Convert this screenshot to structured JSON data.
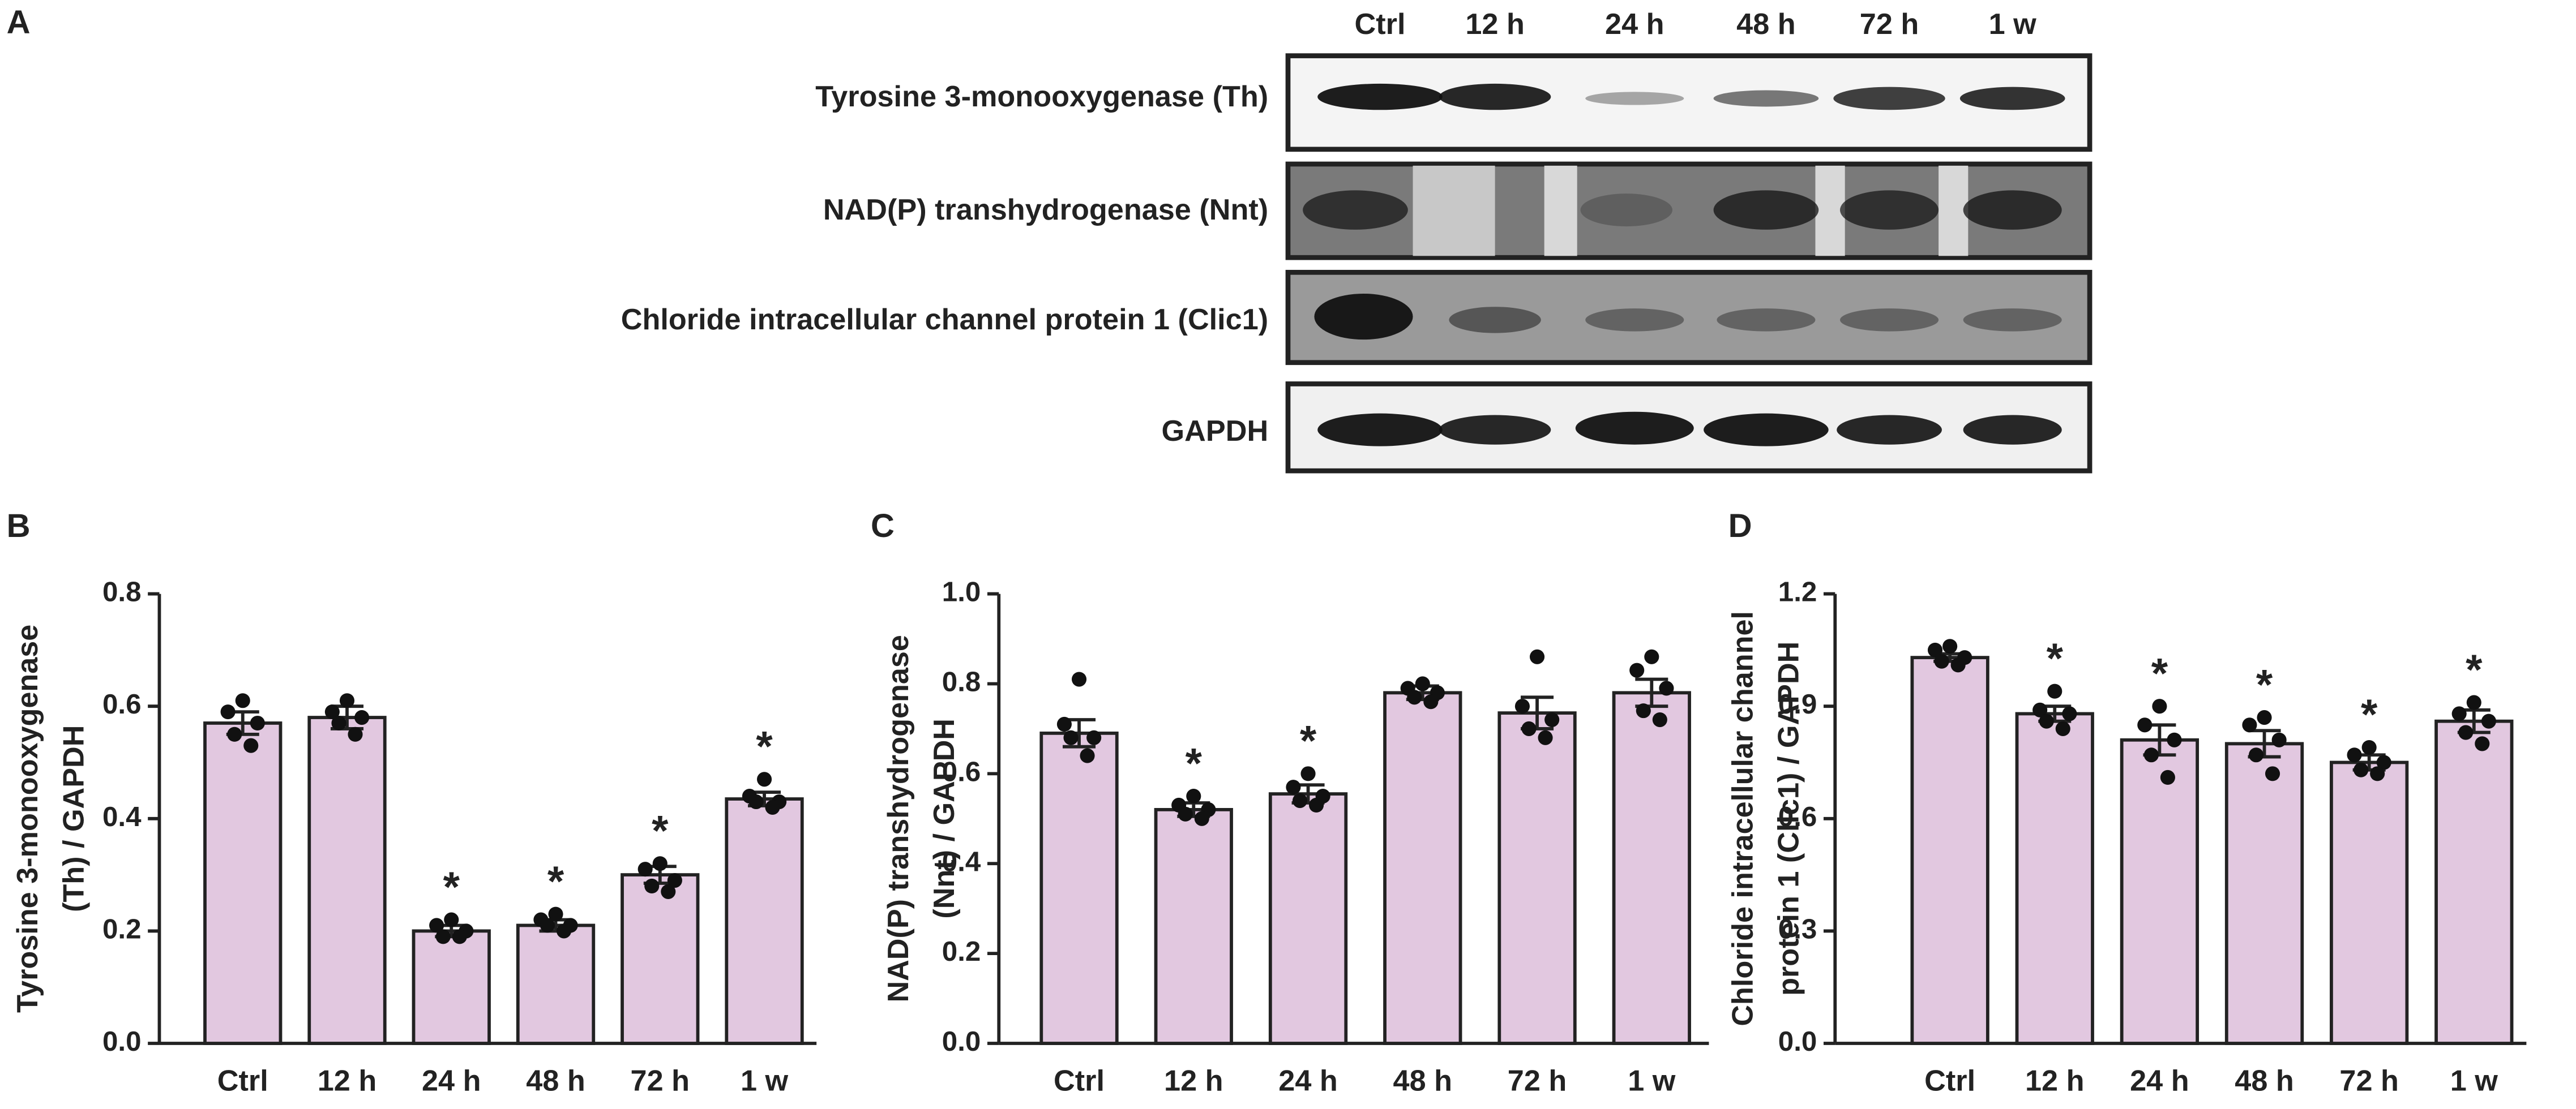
{
  "panel_labels": [
    "A",
    "B",
    "C",
    "D"
  ],
  "blot": {
    "lanes": [
      "Ctrl",
      "12 h",
      "24 h",
      "48 h",
      "72 h",
      "1 w"
    ],
    "rows": [
      "Tyrosine 3-monooxygenase (Th)",
      "NAD(P) transhydrogenase (Nnt)",
      "Chloride intracellular channel protein 1 (Clic1)",
      "GAPDH"
    ]
  },
  "chart_data": [
    {
      "type": "bar",
      "ylabel": [
        "Tyrosine 3-monooxygenase",
        "(Th) / GAPDH"
      ],
      "categories": [
        "Ctrl",
        "12 h",
        "24 h",
        "48 h",
        "72 h",
        "1 w"
      ],
      "values": [
        0.57,
        0.58,
        0.2,
        0.21,
        0.3,
        0.435
      ],
      "errors": [
        0.02,
        0.02,
        0.01,
        0.01,
        0.015,
        0.012
      ],
      "points": [
        [
          0.61,
          0.59,
          0.57,
          0.55,
          0.53
        ],
        [
          0.61,
          0.59,
          0.58,
          0.57,
          0.55
        ],
        [
          0.22,
          0.21,
          0.2,
          0.19,
          0.19
        ],
        [
          0.23,
          0.22,
          0.21,
          0.21,
          0.2
        ],
        [
          0.32,
          0.31,
          0.29,
          0.28,
          0.27
        ],
        [
          0.47,
          0.44,
          0.43,
          0.43,
          0.42
        ]
      ],
      "significance": [
        null,
        null,
        "*",
        "*",
        "*",
        "*"
      ],
      "color": "#e2c8e0",
      "ylim": [
        0,
        0.8
      ],
      "yticks": [
        {
          "value": 0,
          "label": "0.0"
        },
        0.2,
        0.4,
        0.6,
        0.8
      ]
    },
    {
      "type": "bar",
      "ylabel": [
        "NAD(P) transhydrogenase",
        "(Nnt) / GAPDH"
      ],
      "categories": [
        "Ctrl",
        "12 h",
        "24 h",
        "48 h",
        "72 h",
        "1 w"
      ],
      "values": [
        0.69,
        0.52,
        0.555,
        0.78,
        0.735,
        0.78
      ],
      "errors": [
        0.03,
        0.015,
        0.02,
        0.015,
        0.035,
        0.03
      ],
      "points": [
        [
          0.81,
          0.71,
          0.68,
          0.68,
          0.64
        ],
        [
          0.55,
          0.53,
          0.52,
          0.51,
          0.5
        ],
        [
          0.6,
          0.57,
          0.55,
          0.54,
          0.53
        ],
        [
          0.8,
          0.79,
          0.78,
          0.77,
          0.76
        ],
        [
          0.86,
          0.75,
          0.72,
          0.7,
          0.68
        ],
        [
          0.86,
          0.83,
          0.79,
          0.74,
          0.72
        ]
      ],
      "significance": [
        null,
        "*",
        "*",
        null,
        null,
        null
      ],
      "color": "#e2c8e0",
      "ylim": [
        0,
        1
      ],
      "yticks": [
        {
          "value": 0,
          "label": "0.0"
        },
        0.2,
        0.4,
        0.6,
        0.8,
        {
          "value": 1,
          "label": "1.0"
        }
      ]
    },
    {
      "type": "bar",
      "ylabel": [
        "Chloride intracellular channel",
        "protein 1 (Clic1) / GAPDH"
      ],
      "categories": [
        "Ctrl",
        "12 h",
        "24 h",
        "48 h",
        "72 h",
        "1 w"
      ],
      "values": [
        1.03,
        0.88,
        0.81,
        0.8,
        0.75,
        0.86
      ],
      "errors": [
        0.01,
        0.02,
        0.04,
        0.035,
        0.02,
        0.03
      ],
      "points": [
        [
          1.06,
          1.05,
          1.03,
          1.02,
          1.01
        ],
        [
          0.94,
          0.89,
          0.88,
          0.86,
          0.84
        ],
        [
          0.9,
          0.85,
          0.81,
          0.77,
          0.71
        ],
        [
          0.87,
          0.85,
          0.81,
          0.77,
          0.72
        ],
        [
          0.79,
          0.77,
          0.75,
          0.73,
          0.72
        ],
        [
          0.91,
          0.88,
          0.86,
          0.83,
          0.8
        ]
      ],
      "significance": [
        null,
        "*",
        "*",
        "*",
        "*",
        "*"
      ],
      "color": "#e2c8e0",
      "ylim": [
        0,
        1.2
      ],
      "yticks": [
        {
          "value": 0,
          "label": "0.0"
        },
        0.3,
        0.6,
        0.9,
        1.2
      ]
    }
  ]
}
